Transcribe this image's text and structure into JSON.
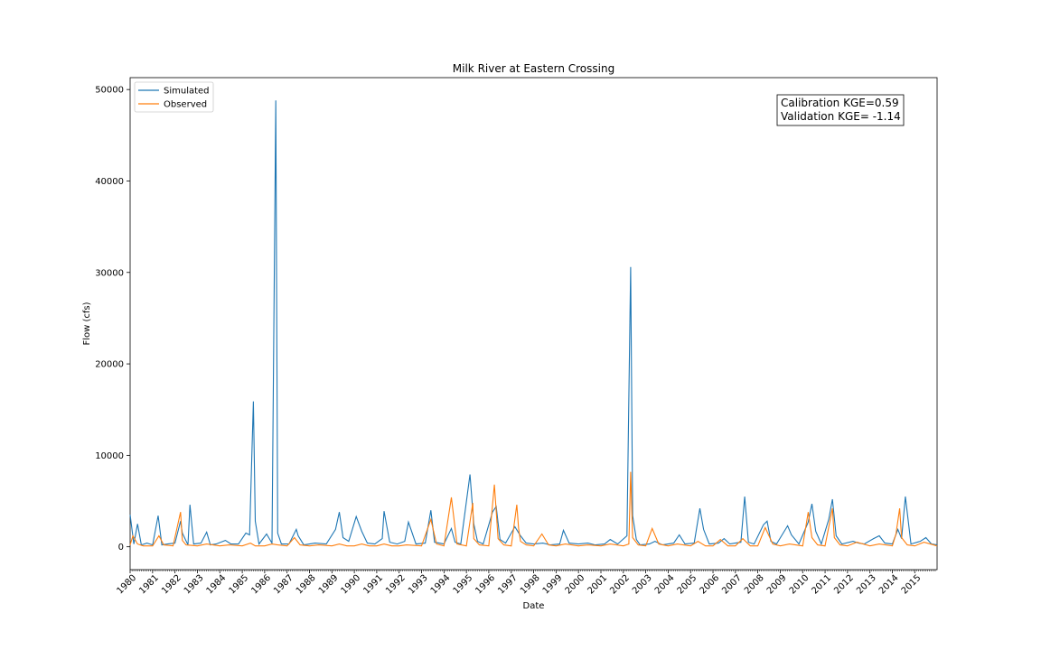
{
  "chart_data": {
    "type": "line",
    "title": "Milk River at Eastern Crossing",
    "xlabel": "Date",
    "ylabel": "Flow (cfs)",
    "xlim": [
      "1980-01-01",
      "2015-12-31"
    ],
    "ylim": [
      -2500,
      51300
    ],
    "x_ticks": [
      "1980",
      "1981",
      "1982",
      "1983",
      "1984",
      "1985",
      "1986",
      "1987",
      "1988",
      "1989",
      "1990",
      "1991",
      "1992",
      "1993",
      "1994",
      "1995",
      "1996",
      "1997",
      "1998",
      "1999",
      "2000",
      "2001",
      "2002",
      "2003",
      "2004",
      "2005",
      "2006",
      "2007",
      "2008",
      "2009",
      "2010",
      "2011",
      "2012",
      "2013",
      "2014",
      "2015"
    ],
    "y_ticks": [
      0,
      10000,
      20000,
      30000,
      40000,
      50000
    ],
    "grid": false,
    "legend_position": "top-left",
    "series": [
      {
        "name": "Simulated",
        "color": "#1f77b4",
        "x": [
          "1980-01-01",
          "1980-03-01",
          "1980-05-01",
          "1980-07-01",
          "1980-10-01",
          "1981-01-01",
          "1981-04-01",
          "1981-06-01",
          "1981-09-01",
          "1982-01-01",
          "1982-04-01",
          "1982-05-01",
          "1982-08-01",
          "1982-09-01",
          "1982-11-01",
          "1983-03-01",
          "1983-06-01",
          "1983-08-01",
          "1983-11-01",
          "1984-04-01",
          "1984-07-01",
          "1984-11-01",
          "1985-03-01",
          "1985-05-01",
          "1985-07-01",
          "1985-08-01",
          "1985-10-01",
          "1986-02-01",
          "1986-05-01",
          "1986-07-01",
          "1986-08-01",
          "1986-10-01",
          "1987-02-01",
          "1987-06-01",
          "1987-07-01",
          "1987-10-01",
          "1988-04-01",
          "1988-10-01",
          "1989-03-01",
          "1989-05-01",
          "1989-07-01",
          "1989-10-01",
          "1990-02-01",
          "1990-05-01",
          "1990-08-01",
          "1990-12-01",
          "1991-04-01",
          "1991-05-01",
          "1991-08-01",
          "1991-12-01",
          "1992-04-01",
          "1992-06-01",
          "1992-10-01",
          "1993-03-01",
          "1993-06-01",
          "1993-08-01",
          "1994-01-01",
          "1994-05-01",
          "1994-07-01",
          "1994-10-01",
          "1995-03-01",
          "1995-05-01",
          "1995-07-01",
          "1995-10-01",
          "1996-03-01",
          "1996-05-01",
          "1996-07-01",
          "1996-10-01",
          "1997-03-01",
          "1997-06-01",
          "1997-09-01",
          "1998-01-01",
          "1998-06-01",
          "1998-10-01",
          "1999-03-01",
          "1999-05-01",
          "1999-08-01",
          "2000-01-01",
          "2000-06-01",
          "2000-10-01",
          "2001-03-01",
          "2001-06-01",
          "2001-10-01",
          "2002-03-01",
          "2002-05-01",
          "2002-06-01",
          "2002-08-01",
          "2002-10-01",
          "2003-03-01",
          "2003-06-01",
          "2003-10-01",
          "2004-04-01",
          "2004-07-01",
          "2004-10-01",
          "2005-03-01",
          "2005-06-01",
          "2005-08-01",
          "2005-11-01",
          "2006-04-01",
          "2006-07-01",
          "2006-10-01",
          "2007-04-01",
          "2007-06-01",
          "2007-08-01",
          "2007-11-01",
          "2008-04-01",
          "2008-06-01",
          "2008-08-01",
          "2008-11-01",
          "2009-05-01",
          "2009-07-01",
          "2009-11-01",
          "2010-04-01",
          "2010-06-01",
          "2010-08-01",
          "2010-11-01",
          "2011-03-01",
          "2011-05-01",
          "2011-07-01",
          "2011-10-01",
          "2012-04-01",
          "2012-07-01",
          "2012-10-01",
          "2013-03-01",
          "2013-06-01",
          "2013-09-01",
          "2014-01-01",
          "2014-04-01",
          "2014-06-01",
          "2014-08-01",
          "2014-11-01",
          "2015-04-01",
          "2015-07-01",
          "2015-10-01",
          "2015-12-31"
        ],
        "y": [
          3500,
          300,
          2500,
          200,
          400,
          200,
          3400,
          200,
          300,
          400,
          2800,
          1500,
          200,
          4600,
          300,
          400,
          1600,
          200,
          300,
          700,
          300,
          300,
          1500,
          1300,
          15900,
          2800,
          300,
          1400,
          400,
          48800,
          1500,
          300,
          300,
          1900,
          1200,
          200,
          400,
          300,
          1900,
          3800,
          1000,
          600,
          3300,
          1700,
          400,
          300,
          900,
          3900,
          500,
          300,
          600,
          2700,
          300,
          400,
          4000,
          500,
          300,
          2000,
          500,
          300,
          7900,
          2500,
          600,
          300,
          3800,
          4400,
          800,
          400,
          2200,
          1200,
          400,
          300,
          400,
          200,
          300,
          1800,
          400,
          300,
          400,
          200,
          300,
          800,
          300,
          1200,
          30600,
          3400,
          800,
          200,
          300,
          600,
          200,
          400,
          1300,
          300,
          400,
          4200,
          1900,
          300,
          400,
          900,
          300,
          500,
          5500,
          500,
          300,
          2400,
          2800,
          600,
          300,
          2300,
          1300,
          300,
          2700,
          4700,
          1700,
          300,
          3000,
          5200,
          1200,
          300,
          600,
          400,
          300,
          900,
          1200,
          400,
          300,
          1900,
          900,
          5500,
          300,
          600,
          1000,
          300,
          200
        ]
      },
      {
        "name": "Observed",
        "color": "#ff7f0e",
        "x": [
          "1980-01-01",
          "1980-02-15",
          "1980-05-01",
          "1980-08-01",
          "1981-01-01",
          "1981-04-15",
          "1981-07-01",
          "1981-12-01",
          "1982-04-01",
          "1982-05-01",
          "1982-07-01",
          "1983-01-01",
          "1983-06-01",
          "1984-01-01",
          "1984-06-01",
          "1985-01-01",
          "1985-05-15",
          "1985-08-01",
          "1986-01-01",
          "1986-05-01",
          "1986-08-01",
          "1987-01-01",
          "1987-05-01",
          "1987-08-01",
          "1988-01-01",
          "1988-06-01",
          "1989-01-01",
          "1989-05-01",
          "1989-09-01",
          "1990-01-01",
          "1990-05-01",
          "1990-09-01",
          "1991-01-01",
          "1991-05-01",
          "1991-09-01",
          "1992-01-01",
          "1992-05-01",
          "1993-01-01",
          "1993-06-01",
          "1993-09-01",
          "1994-01-01",
          "1994-05-01",
          "1994-08-01",
          "1995-01-01",
          "1995-04-15",
          "1995-05-01",
          "1995-08-01",
          "1996-01-01",
          "1996-04-01",
          "1996-06-01",
          "1996-09-01",
          "1997-01-01",
          "1997-04-01",
          "1997-05-01",
          "1997-06-01",
          "1997-09-01",
          "1998-01-01",
          "1998-05-15",
          "1998-09-01",
          "1999-01-01",
          "1999-06-01",
          "2000-01-01",
          "2000-06-01",
          "2001-01-01",
          "2001-06-01",
          "2002-01-01",
          "2002-04-01",
          "2002-05-01",
          "2002-06-01",
          "2002-09-01",
          "2003-01-01",
          "2003-04-15",
          "2003-08-01",
          "2004-01-01",
          "2004-06-01",
          "2005-01-01",
          "2005-05-01",
          "2005-09-01",
          "2006-01-01",
          "2006-05-01",
          "2006-09-01",
          "2007-01-01",
          "2007-05-01",
          "2007-09-01",
          "2008-01-01",
          "2008-05-01",
          "2008-09-01",
          "2009-01-01",
          "2009-06-01",
          "2010-01-01",
          "2010-04-01",
          "2010-06-01",
          "2010-09-01",
          "2011-01-01",
          "2011-05-01",
          "2011-06-01",
          "2011-09-01",
          "2012-01-01",
          "2012-06-01",
          "2013-01-01",
          "2013-06-01",
          "2014-01-01",
          "2014-03-01",
          "2014-05-01",
          "2014-06-01",
          "2014-09-01",
          "2015-01-01",
          "2015-06-01",
          "2015-12-31"
        ],
        "y": [
          200,
          1200,
          300,
          100,
          100,
          1200,
          200,
          100,
          3800,
          700,
          200,
          100,
          300,
          100,
          200,
          100,
          400,
          100,
          100,
          300,
          200,
          100,
          1000,
          200,
          100,
          200,
          100,
          300,
          100,
          100,
          300,
          100,
          100,
          300,
          100,
          100,
          200,
          100,
          3000,
          300,
          100,
          5400,
          300,
          100,
          4800,
          900,
          200,
          100,
          6800,
          900,
          200,
          100,
          4600,
          2000,
          600,
          200,
          100,
          1400,
          200,
          100,
          300,
          100,
          200,
          100,
          300,
          100,
          300,
          8200,
          1000,
          200,
          100,
          2000,
          300,
          100,
          300,
          100,
          600,
          100,
          100,
          800,
          100,
          100,
          900,
          100,
          100,
          2100,
          300,
          100,
          300,
          100,
          3800,
          1000,
          200,
          100,
          4200,
          1000,
          200,
          100,
          500,
          100,
          300,
          100,
          1400,
          4200,
          1000,
          200,
          100,
          500,
          100
        ]
      }
    ]
  },
  "annotation": {
    "line1": "Calibration KGE=0.59",
    "line2": "Validation KGE= -1.14"
  }
}
